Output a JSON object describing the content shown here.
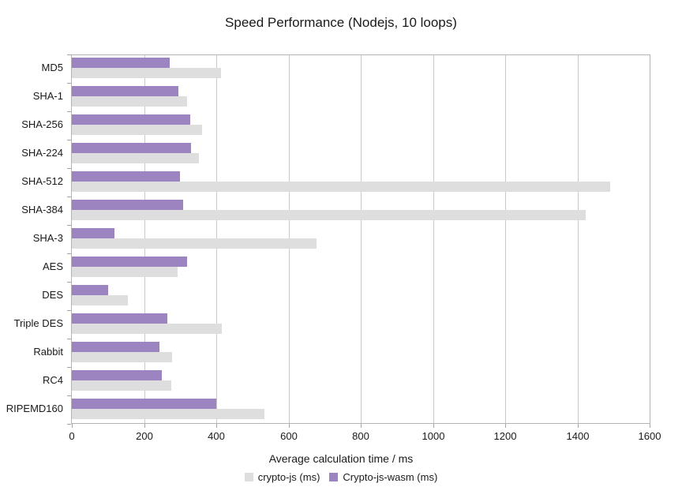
{
  "chart_data": {
    "type": "bar",
    "orientation": "horizontal",
    "title": "Speed Performance (Nodejs, 10 loops)",
    "xlabel": "Average calculation time / ms",
    "ylabel": "",
    "xlim": [
      0,
      1600
    ],
    "xticks": [
      0,
      200,
      400,
      600,
      800,
      1000,
      1200,
      1400,
      1600
    ],
    "grid": true,
    "legend_position": "bottom",
    "categories": [
      "MD5",
      "SHA-1",
      "SHA-256",
      "SHA-224",
      "SHA-512",
      "SHA-384",
      "SHA-3",
      "AES",
      "DES",
      "Triple DES",
      "Rabbit",
      "RC4",
      "RIPEMD160"
    ],
    "series": [
      {
        "name": "crypto-js (ms)",
        "color": "#dedede",
        "values": [
          413,
          320,
          360,
          352,
          1490,
          1422,
          678,
          292,
          155,
          415,
          278,
          276,
          534
        ]
      },
      {
        "name": "Crypto-js-wasm (ms)",
        "color": "#9b84c0",
        "values": [
          270,
          295,
          328,
          330,
          300,
          308,
          119,
          319,
          100,
          265,
          243,
          249,
          400
        ]
      }
    ]
  },
  "colors": {
    "plot_border": "#b3b3b3",
    "gridline": "#c9c9c9",
    "axis_tick": "#a6a6a6",
    "text": "#1a1a1a",
    "background": "#ffffff"
  }
}
